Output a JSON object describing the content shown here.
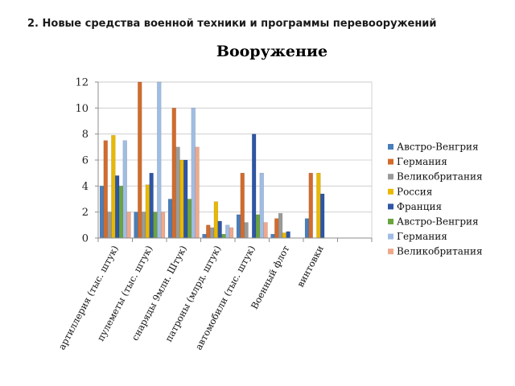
{
  "page": {
    "heading": "2. Новые средства военной техники и программы перевооружений"
  },
  "chart_data": {
    "type": "bar",
    "title": "Вооружение",
    "xlabel": "",
    "ylabel": "",
    "ylim": [
      0,
      12
    ],
    "yticks": [
      "0",
      "2",
      "4",
      "6",
      "8",
      "10",
      "12"
    ],
    "grid": true,
    "legend_position": "right",
    "categories": [
      "артиллерия (тыс. штук)",
      "пулеметы (тыс. штук)",
      "снаряды 9млн. Штук)",
      "патроны (млрд. штук)",
      "автомобили (тыс. штук)",
      "Военный флот",
      "винтовки"
    ],
    "series": [
      {
        "name": "Австро-Венгрия",
        "color": "#4a7ebb",
        "values": [
          4,
          2,
          3,
          0.3,
          1.8,
          0.3,
          1.5
        ]
      },
      {
        "name": "Германия",
        "color": "#d26b2c",
        "values": [
          7.5,
          12,
          10,
          1,
          5,
          1.5,
          5
        ]
      },
      {
        "name": "Великобритания",
        "color": "#9a9a9a",
        "values": [
          2,
          2,
          7,
          0.8,
          1.2,
          1.9,
          0
        ]
      },
      {
        "name": "Россия",
        "color": "#e9b800",
        "values": [
          7.9,
          4.1,
          6,
          2.8,
          0,
          0.4,
          5
        ]
      },
      {
        "name": "Франция",
        "color": "#2e56a5",
        "values": [
          4.8,
          5,
          6,
          1.3,
          8,
          0.5,
          3.4
        ]
      },
      {
        "name": "Австро-Венгрия",
        "color": "#6ba43e",
        "values": [
          4,
          2,
          3,
          0.3,
          1.8,
          0,
          0
        ]
      },
      {
        "name": "Германия",
        "color": "#9fbde4",
        "values": [
          7.5,
          12,
          10,
          1,
          5,
          0,
          0
        ]
      },
      {
        "name": "Великобритания",
        "color": "#f0a88c",
        "values": [
          2,
          2,
          7,
          0.8,
          1.2,
          0,
          0
        ]
      }
    ]
  }
}
